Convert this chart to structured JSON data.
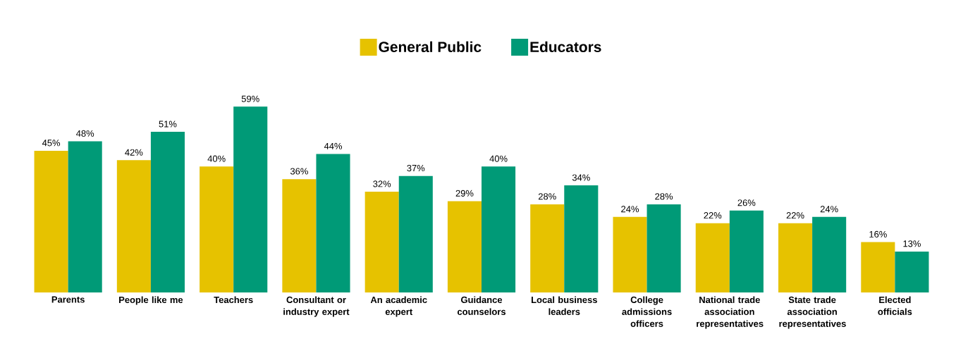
{
  "chart_data": {
    "type": "bar",
    "categories": [
      "Parents",
      "People like me",
      "Teachers",
      "Consultant or industry expert",
      "An academic expert",
      "Guidance counselors",
      "Local business leaders",
      "College admissions officers",
      "National trade association representatives",
      "State trade association representatives",
      "Elected officials"
    ],
    "series": [
      {
        "name": "General Public",
        "color": "#e6c200",
        "values": [
          45,
          42,
          40,
          36,
          32,
          29,
          28,
          24,
          22,
          22,
          16
        ],
        "value_labels": [
          "45%",
          "42%",
          "40%",
          "36%",
          "32%",
          "29%",
          "28%",
          "24%",
          "22%",
          "22%",
          "16%"
        ]
      },
      {
        "name": "Educators",
        "color": "#009a77",
        "values": [
          48,
          51,
          59,
          44,
          37,
          40,
          34,
          28,
          26,
          24,
          13
        ],
        "value_labels": [
          "48%",
          "51%",
          "59%",
          "44%",
          "37%",
          "40%",
          "34%",
          "28%",
          "26%",
          "24%",
          "13%"
        ]
      }
    ],
    "legend": "top",
    "grid": false
  }
}
